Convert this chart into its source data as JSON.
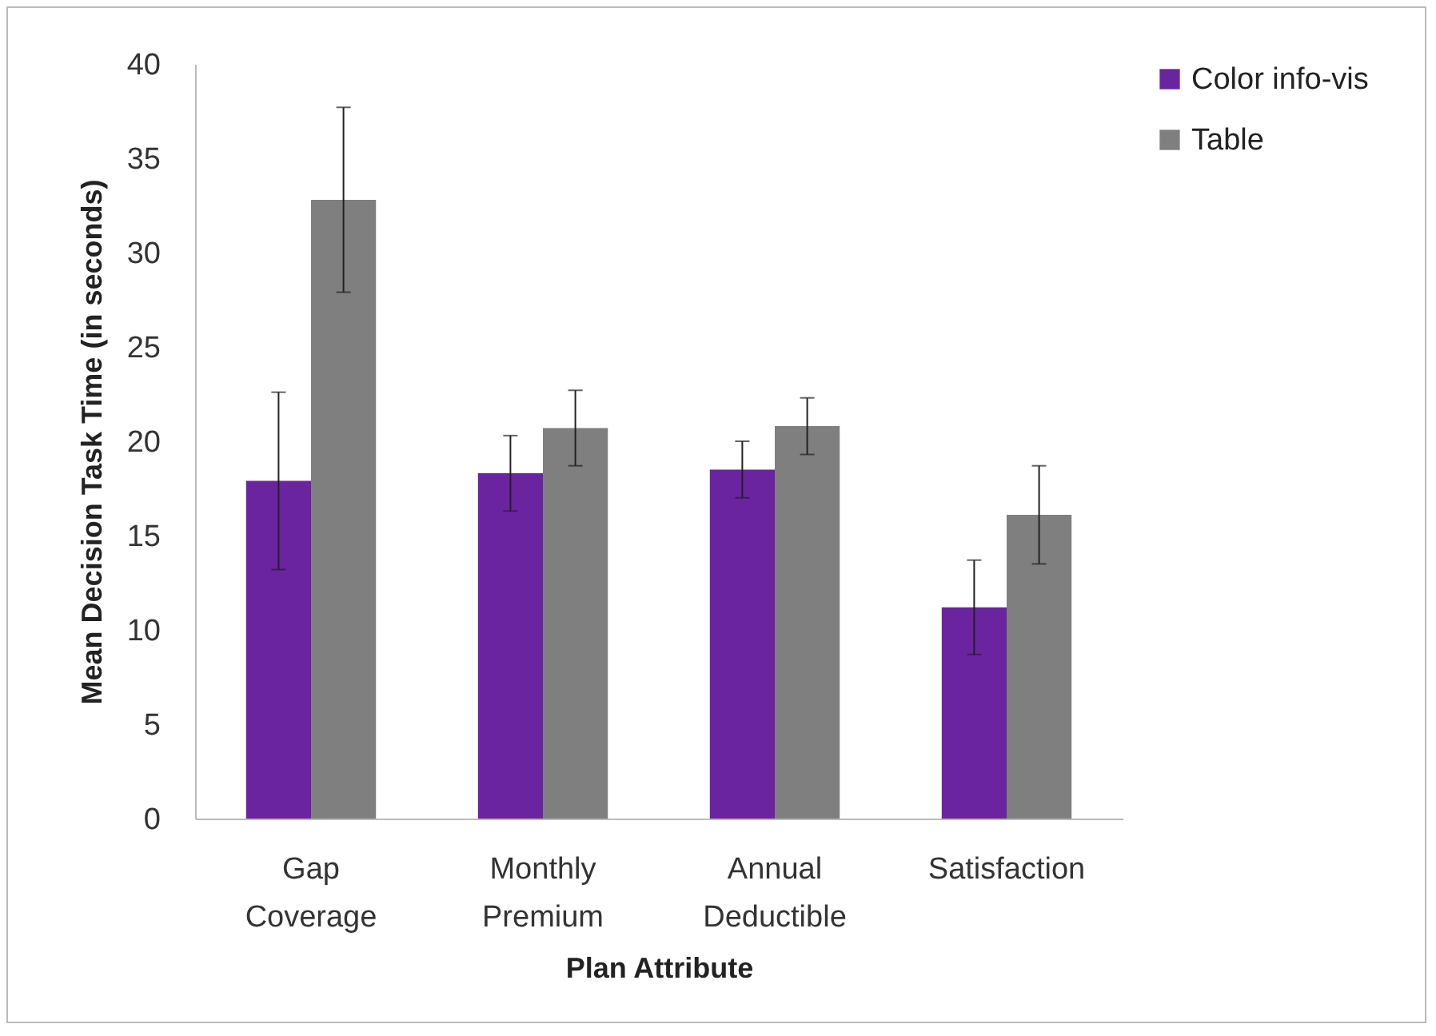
{
  "chart_data": {
    "type": "bar",
    "xlabel": "Plan Attribute",
    "ylabel": "Mean Decision Task Time  (in seconds)",
    "categories": [
      "Gap Coverage",
      "Monthly Premium",
      "Annual Deductible",
      "Satisfaction"
    ],
    "series": [
      {
        "name": "Color info-vis",
        "color": "#6b24a0",
        "values": [
          17.9,
          18.3,
          18.5,
          11.2
        ],
        "errors": [
          4.7,
          2.0,
          1.5,
          2.5
        ]
      },
      {
        "name": "Table",
        "color": "#7f7f7f",
        "values": [
          32.8,
          20.7,
          20.8,
          16.1
        ],
        "errors": [
          4.9,
          2.0,
          1.5,
          2.6
        ]
      }
    ],
    "ylim": [
      0,
      40
    ],
    "yticks": [
      0,
      5,
      10,
      15,
      20,
      25,
      30,
      35,
      40
    ],
    "grid": false,
    "legend": "right"
  }
}
